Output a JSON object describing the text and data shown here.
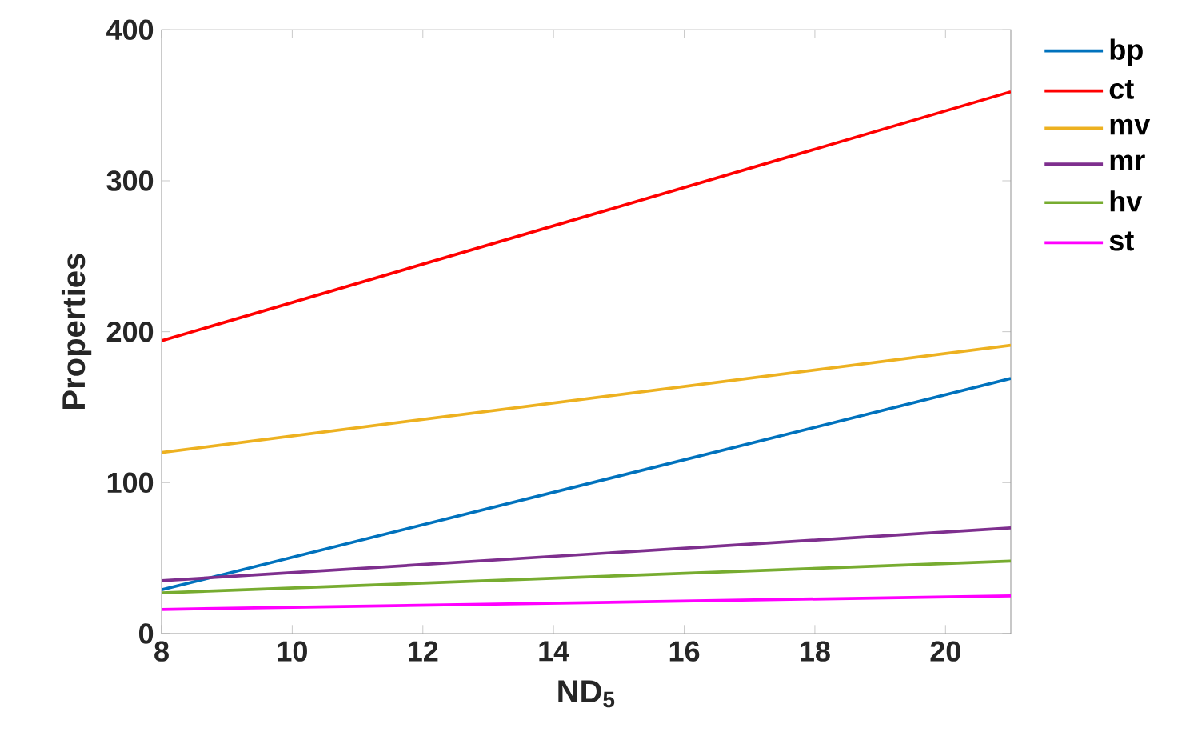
{
  "chart_data": {
    "type": "line",
    "xlabel": "ND$_{5}$",
    "ylabel": "Properties",
    "x": [
      8,
      21
    ],
    "series": [
      {
        "name": "bp",
        "color": "#0072bd",
        "values": [
          29,
          169
        ]
      },
      {
        "name": "ct",
        "color": "#ff0000",
        "values": [
          194,
          359
        ]
      },
      {
        "name": "mv",
        "color": "#edb120",
        "values": [
          120,
          191
        ]
      },
      {
        "name": "mr",
        "color": "#7e2f8e",
        "values": [
          35,
          70
        ]
      },
      {
        "name": "hv",
        "color": "#77ac30",
        "values": [
          27,
          48
        ]
      },
      {
        "name": "st",
        "color": "#ff00ff",
        "values": [
          16,
          25
        ]
      }
    ],
    "xlim": [
      8,
      21
    ],
    "xticks": [
      8,
      10,
      12,
      14,
      16,
      18,
      20
    ],
    "ylim": [
      0,
      400
    ],
    "yticks": [
      0,
      100,
      200,
      300,
      400
    ],
    "grid": false,
    "legend": "top right",
    "marker": "none",
    "line_style": "solid"
  }
}
